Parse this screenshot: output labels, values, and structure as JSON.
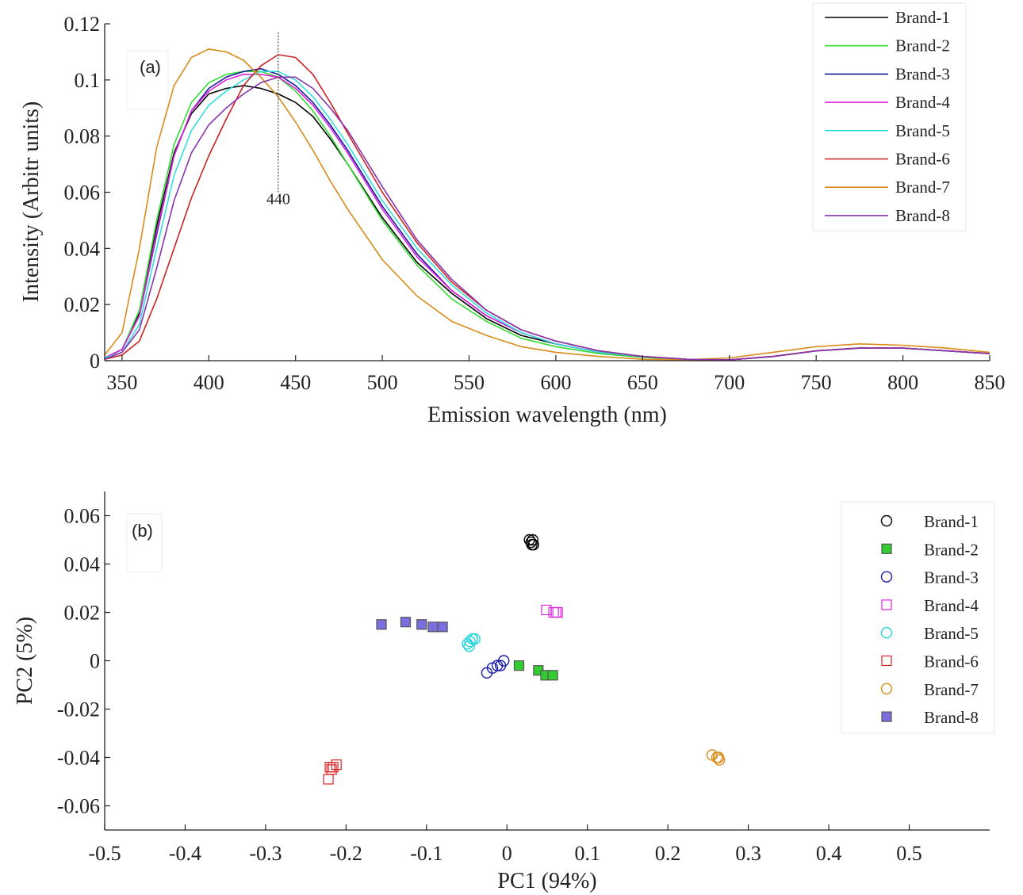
{
  "chart_data": [
    {
      "type": "line",
      "panel_label": "(a)",
      "xlabel": "Emission wavelength (nm)",
      "ylabel": "Intensity (Arbitr units)",
      "xlim": [
        340,
        850
      ],
      "ylim": [
        0,
        0.12
      ],
      "xticks": [
        350,
        400,
        450,
        500,
        550,
        600,
        650,
        700,
        750,
        800,
        850
      ],
      "yticks": [
        0,
        0.02,
        0.04,
        0.06,
        0.08,
        0.1,
        0.12
      ],
      "ytick_labels": [
        "0",
        "0.02",
        "0.04",
        "0.06",
        "0.08",
        "0.1",
        "0.12"
      ],
      "grid": false,
      "legend": "top-right",
      "annotation": {
        "text": "440",
        "x": 440,
        "line_from": 0.06,
        "line_to": 0.117
      },
      "x": [
        340,
        350,
        360,
        370,
        380,
        390,
        400,
        410,
        420,
        430,
        440,
        450,
        460,
        470,
        480,
        500,
        520,
        540,
        560,
        580,
        600,
        625,
        650,
        675,
        700,
        725,
        750,
        775,
        800,
        825,
        850
      ],
      "series": [
        {
          "name": "Brand-1",
          "color": "#000000",
          "values": [
            0.001,
            0.004,
            0.017,
            0.048,
            0.074,
            0.088,
            0.095,
            0.097,
            0.098,
            0.097,
            0.095,
            0.092,
            0.087,
            0.079,
            0.07,
            0.051,
            0.035,
            0.024,
            0.015,
            0.009,
            0.006,
            0.003,
            0.0015,
            0.0005,
            0.0003,
            0.0015,
            0.0035,
            0.0045,
            0.0045,
            0.0035,
            0.0025
          ]
        },
        {
          "name": "Brand-2",
          "color": "#33dd33",
          "values": [
            0.001,
            0.004,
            0.018,
            0.05,
            0.077,
            0.092,
            0.099,
            0.102,
            0.103,
            0.103,
            0.101,
            0.096,
            0.089,
            0.08,
            0.07,
            0.05,
            0.034,
            0.022,
            0.014,
            0.008,
            0.005,
            0.0025,
            0.0012,
            0.0004,
            0.0003,
            0.0015,
            0.0035,
            0.0045,
            0.0045,
            0.0035,
            0.0025
          ]
        },
        {
          "name": "Brand-3",
          "color": "#1a1a99",
          "values": [
            0.001,
            0.004,
            0.016,
            0.045,
            0.073,
            0.089,
            0.097,
            0.101,
            0.103,
            0.104,
            0.102,
            0.098,
            0.092,
            0.084,
            0.075,
            0.055,
            0.038,
            0.025,
            0.016,
            0.01,
            0.006,
            0.003,
            0.0015,
            0.0005,
            0.0003,
            0.0015,
            0.0035,
            0.0045,
            0.0045,
            0.0035,
            0.0025
          ]
        },
        {
          "name": "Brand-4",
          "color": "#dd22dd",
          "values": [
            0.001,
            0.004,
            0.016,
            0.046,
            0.073,
            0.089,
            0.096,
            0.1,
            0.102,
            0.102,
            0.101,
            0.097,
            0.091,
            0.083,
            0.074,
            0.054,
            0.037,
            0.025,
            0.016,
            0.01,
            0.006,
            0.003,
            0.0015,
            0.0005,
            0.0003,
            0.0015,
            0.0035,
            0.0045,
            0.0045,
            0.0035,
            0.0025
          ]
        },
        {
          "name": "Brand-5",
          "color": "#33dddd",
          "values": [
            0.001,
            0.003,
            0.013,
            0.04,
            0.066,
            0.082,
            0.091,
            0.096,
            0.1,
            0.103,
            0.103,
            0.1,
            0.094,
            0.086,
            0.077,
            0.057,
            0.04,
            0.027,
            0.017,
            0.01,
            0.006,
            0.003,
            0.0015,
            0.0005,
            0.0003,
            0.0015,
            0.0035,
            0.0045,
            0.0045,
            0.0035,
            0.0025
          ]
        },
        {
          "name": "Brand-6",
          "color": "#cc2222",
          "values": [
            0.0005,
            0.002,
            0.007,
            0.022,
            0.04,
            0.058,
            0.073,
            0.086,
            0.098,
            0.105,
            0.109,
            0.108,
            0.102,
            0.092,
            0.081,
            0.06,
            0.042,
            0.028,
            0.018,
            0.011,
            0.007,
            0.0035,
            0.0015,
            0.0005,
            0.0003,
            0.0015,
            0.0035,
            0.0045,
            0.0045,
            0.0035,
            0.0025
          ]
        },
        {
          "name": "Brand-7",
          "color": "#d98c1a",
          "values": [
            0.002,
            0.01,
            0.04,
            0.076,
            0.098,
            0.108,
            0.111,
            0.11,
            0.107,
            0.101,
            0.094,
            0.085,
            0.075,
            0.064,
            0.054,
            0.036,
            0.023,
            0.014,
            0.009,
            0.005,
            0.003,
            0.0015,
            0.0005,
            0.0003,
            0.001,
            0.003,
            0.005,
            0.006,
            0.0055,
            0.0045,
            0.003
          ]
        },
        {
          "name": "Brand-8",
          "color": "#8833aa",
          "values": [
            0.0005,
            0.003,
            0.011,
            0.033,
            0.057,
            0.074,
            0.084,
            0.09,
            0.095,
            0.099,
            0.101,
            0.101,
            0.097,
            0.09,
            0.082,
            0.062,
            0.043,
            0.029,
            0.018,
            0.011,
            0.007,
            0.0035,
            0.0015,
            0.0005,
            0.0003,
            0.0015,
            0.0035,
            0.0045,
            0.0045,
            0.0035,
            0.0025
          ]
        }
      ]
    },
    {
      "type": "scatter",
      "panel_label": "(b)",
      "xlabel": "PC1 (94%)",
      "ylabel": "PC2 (5%)",
      "xlim": [
        -0.5,
        0.6
      ],
      "ylim": [
        -0.07,
        0.07
      ],
      "xticks": [
        -0.5,
        -0.4,
        -0.3,
        -0.2,
        -0.1,
        0,
        0.1,
        0.2,
        0.3,
        0.4,
        0.5
      ],
      "xtick_labels": [
        "-0.5",
        "-0.4",
        "-0.3",
        "-0.2",
        "-0.1",
        "0",
        "0.1",
        "0.2",
        "0.3",
        "0.4",
        "0.5"
      ],
      "yticks": [
        -0.06,
        -0.04,
        -0.02,
        0,
        0.02,
        0.04,
        0.06
      ],
      "ytick_labels": [
        "-0.06",
        "-0.04",
        "-0.02",
        "0",
        "0.02",
        "0.04",
        "0.06"
      ],
      "grid": false,
      "legend": "top-right",
      "series": [
        {
          "name": "Brand-1",
          "color": "#000000",
          "marker": "circle",
          "filled": false,
          "points": [
            [
              0.028,
              0.05
            ],
            [
              0.03,
              0.049
            ],
            [
              0.031,
              0.048
            ],
            [
              0.032,
              0.05
            ],
            [
              0.033,
              0.048
            ]
          ]
        },
        {
          "name": "Brand-2",
          "color": "#33cc33",
          "marker": "square",
          "filled": true,
          "points": [
            [
              0.015,
              -0.002
            ],
            [
              0.039,
              -0.004
            ],
            [
              0.048,
              -0.006
            ],
            [
              0.057,
              -0.006
            ]
          ]
        },
        {
          "name": "Brand-3",
          "color": "#1a1aaa",
          "marker": "circle",
          "filled": false,
          "points": [
            [
              -0.025,
              -0.005
            ],
            [
              -0.018,
              -0.003
            ],
            [
              -0.012,
              -0.002
            ],
            [
              -0.008,
              -0.002
            ],
            [
              -0.004,
              0.0
            ]
          ]
        },
        {
          "name": "Brand-4",
          "color": "#dd22dd",
          "marker": "square",
          "filled": false,
          "points": [
            [
              0.049,
              0.021
            ],
            [
              0.058,
              0.02
            ],
            [
              0.061,
              0.02
            ],
            [
              0.063,
              0.02
            ]
          ]
        },
        {
          "name": "Brand-5",
          "color": "#22d4dd",
          "marker": "circle",
          "filled": false,
          "points": [
            [
              -0.049,
              0.007
            ],
            [
              -0.046,
              0.008
            ],
            [
              -0.043,
              0.009
            ],
            [
              -0.04,
              0.009
            ],
            [
              -0.047,
              0.006
            ]
          ]
        },
        {
          "name": "Brand-6",
          "color": "#dd2222",
          "marker": "square",
          "filled": false,
          "points": [
            [
              -0.222,
              -0.049
            ],
            [
              -0.22,
              -0.044
            ],
            [
              -0.218,
              -0.045
            ],
            [
              -0.216,
              -0.044
            ],
            [
              -0.212,
              -0.043
            ]
          ]
        },
        {
          "name": "Brand-7",
          "color": "#d98c1a",
          "marker": "circle",
          "filled": false,
          "points": [
            [
              0.255,
              -0.039
            ],
            [
              0.261,
              -0.04
            ],
            [
              0.263,
              -0.04
            ],
            [
              0.264,
              -0.041
            ]
          ]
        },
        {
          "name": "Brand-8",
          "color": "#7b6fe0",
          "marker": "square",
          "filled": true,
          "points": [
            [
              -0.156,
              0.015
            ],
            [
              -0.126,
              0.016
            ],
            [
              -0.106,
              0.015
            ],
            [
              -0.092,
              0.014
            ],
            [
              -0.08,
              0.014
            ]
          ]
        }
      ]
    }
  ]
}
